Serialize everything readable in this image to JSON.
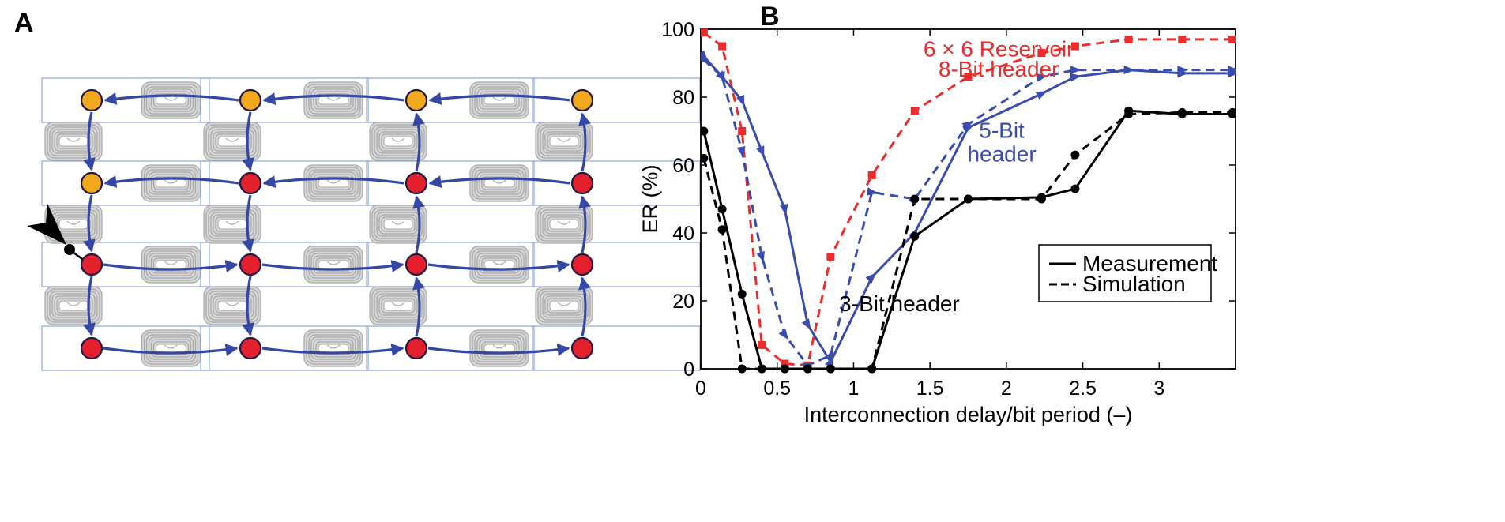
{
  "panel_labels": {
    "a": "A",
    "b": "B"
  },
  "colors": {
    "node_orange": "#F2A81D",
    "node_red": "#E3202B",
    "node_stroke": "#1F1A4A",
    "arrow_blue": "#3547A6",
    "reservoir_gray": "#C9C9C9",
    "wire_blue": "#8FA6DA",
    "red_series": "#EE2A2A",
    "blue_series": "#3A4CB0",
    "black_series": "#000000"
  },
  "network": {
    "description_icon": "photonic-reservoir-network-icon",
    "grid_rows": 4,
    "grid_cols": 4,
    "node_colors": [
      [
        "orange",
        "orange",
        "orange",
        "orange"
      ],
      [
        "orange",
        "red",
        "red",
        "red"
      ],
      [
        "red",
        "red",
        "red",
        "red"
      ],
      [
        "red",
        "red",
        "red",
        "red"
      ]
    ],
    "input_arrow": "input-arrow-icon"
  },
  "chart_data": {
    "type": "line",
    "title": "",
    "xlabel": "Interconnection delay/bit period (–)",
    "ylabel": "ER (%)",
    "xlim": [
      0,
      3.5
    ],
    "ylim": [
      0,
      100
    ],
    "xticks": [
      0,
      0.5,
      1,
      1.5,
      2,
      2.5,
      3
    ],
    "xtick_labels": [
      "0",
      "0.5",
      "1",
      "1.5",
      "2",
      "2.5",
      "3"
    ],
    "yticks": [
      0,
      20,
      40,
      60,
      80,
      100
    ],
    "ytick_labels": [
      "0",
      "20",
      "40",
      "60",
      "80",
      "100"
    ],
    "grid": false,
    "legend_position": "lower-right",
    "legend": [
      {
        "label": "Measurement",
        "style": "solid"
      },
      {
        "label": "Simulation",
        "style": "dashed"
      }
    ],
    "annotations": [
      {
        "text": "6 × 6 Reservoir",
        "color": "red",
        "x": 1.95,
        "y": 92
      },
      {
        "text": "8-Bit header",
        "color": "red",
        "x": 1.95,
        "y": 86
      },
      {
        "text": "5-Bit",
        "color": "blue",
        "x": 1.97,
        "y": 68
      },
      {
        "text": "header",
        "color": "blue",
        "x": 1.97,
        "y": 61
      },
      {
        "text": "3-Bit header",
        "color": "black",
        "x": 1.3,
        "y": 17
      }
    ],
    "series": [
      {
        "group": "8-Bit header",
        "style": "dashed",
        "color": "red",
        "marker": "square",
        "x": [
          0.02,
          0.14,
          0.27,
          0.4,
          0.55,
          0.7,
          0.85,
          1.12,
          1.4,
          1.75,
          2.23,
          2.45,
          2.8,
          3.15,
          3.48
        ],
        "y": [
          99,
          95,
          70,
          7,
          1.5,
          1,
          33,
          57,
          76,
          86,
          93,
          95,
          97,
          97,
          97
        ]
      },
      {
        "group": "5-Bit header",
        "style": "solid",
        "color": "blue",
        "marker": "triangle",
        "x": [
          0.02,
          0.14,
          0.27,
          0.4,
          0.55,
          0.7,
          0.85,
          1.12,
          1.4,
          1.75,
          2.23,
          2.45,
          2.8,
          3.15,
          3.48
        ],
        "y": [
          92,
          86,
          79,
          64,
          47,
          13,
          2,
          27,
          40,
          71,
          81,
          86,
          88,
          87,
          87
        ]
      },
      {
        "group": "5-Bit header",
        "style": "dashed",
        "color": "blue",
        "marker": "triangle",
        "x": [
          0.02,
          0.14,
          0.27,
          0.4,
          0.55,
          0.7,
          0.85,
          1.12,
          1.4,
          1.75,
          2.23,
          2.45,
          2.8,
          3.15,
          3.48
        ],
        "y": [
          91,
          86,
          64,
          33,
          10,
          1,
          4,
          52,
          50,
          72,
          86,
          88,
          88,
          88,
          88
        ]
      },
      {
        "group": "3-Bit header",
        "style": "solid",
        "color": "black",
        "marker": "circle",
        "x": [
          0.02,
          0.14,
          0.27,
          0.4,
          0.55,
          0.7,
          0.85,
          1.12,
          1.4,
          1.75,
          2.23,
          2.45,
          2.8,
          3.15,
          3.48
        ],
        "y": [
          70,
          47,
          22,
          0,
          0,
          0,
          0,
          0,
          39,
          50,
          50.5,
          53,
          76,
          75,
          75
        ]
      },
      {
        "group": "3-Bit header",
        "style": "dashed",
        "color": "black",
        "marker": "circle",
        "x": [
          0.02,
          0.14,
          0.27,
          0.4,
          0.55,
          0.7,
          0.85,
          1.12,
          1.4,
          1.75,
          2.23,
          2.45,
          2.8,
          3.15,
          3.48
        ],
        "y": [
          62,
          41,
          0,
          0,
          0,
          0,
          0,
          0,
          50,
          50,
          50,
          63,
          75,
          75.5,
          75.5
        ]
      }
    ]
  }
}
